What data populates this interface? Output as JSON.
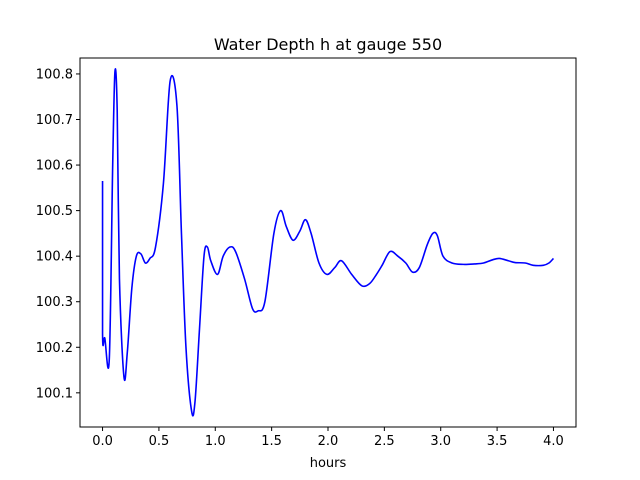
{
  "chart_data": {
    "type": "line",
    "title": "Water Depth h at gauge 550",
    "xlabel": "hours",
    "ylabel": "",
    "xlim": [
      -0.2,
      4.2
    ],
    "ylim": [
      100.025,
      100.835
    ],
    "xticks": [
      0.0,
      0.5,
      1.0,
      1.5,
      2.0,
      2.5,
      3.0,
      3.5,
      4.0
    ],
    "xtick_labels": [
      "0.0",
      "0.5",
      "1.0",
      "1.5",
      "2.0",
      "2.5",
      "3.0",
      "3.5",
      "4.0"
    ],
    "yticks": [
      100.1,
      100.2,
      100.3,
      100.4,
      100.5,
      100.6,
      100.7,
      100.8
    ],
    "ytick_labels": [
      "100.1",
      "100.2",
      "100.3",
      "100.4",
      "100.5",
      "100.6",
      "100.7",
      "100.8"
    ],
    "grid": false,
    "series": [
      {
        "color": "#0000ff",
        "x": [
          0.0,
          0.0,
          0.02,
          0.06,
          0.09,
          0.11,
          0.13,
          0.15,
          0.19,
          0.22,
          0.26,
          0.3,
          0.34,
          0.38,
          0.42,
          0.47,
          0.54,
          0.6,
          0.66,
          0.7,
          0.74,
          0.79,
          0.82,
          0.86,
          0.9,
          0.93,
          0.96,
          1.02,
          1.07,
          1.13,
          1.18,
          1.26,
          1.33,
          1.38,
          1.44,
          1.52,
          1.58,
          1.63,
          1.69,
          1.75,
          1.8,
          1.85,
          1.92,
          1.99,
          2.06,
          2.12,
          2.21,
          2.3,
          2.37,
          2.43,
          2.48,
          2.55,
          2.62,
          2.69,
          2.75,
          2.81,
          2.88,
          2.93,
          2.97,
          3.02,
          3.1,
          3.2,
          3.3,
          3.38,
          3.46,
          3.52,
          3.6,
          3.66,
          3.75,
          3.82,
          3.91,
          3.96,
          4.0
        ],
        "y": [
          100.565,
          100.23,
          100.22,
          100.175,
          100.6,
          100.805,
          100.72,
          100.35,
          100.135,
          100.19,
          100.33,
          100.4,
          100.405,
          100.385,
          100.395,
          100.42,
          100.56,
          100.785,
          100.73,
          100.45,
          100.2,
          100.06,
          100.08,
          100.24,
          100.4,
          100.42,
          100.39,
          100.36,
          100.4,
          100.42,
          100.41,
          100.35,
          100.285,
          100.28,
          100.3,
          100.45,
          100.5,
          100.465,
          100.435,
          100.455,
          100.48,
          100.45,
          100.385,
          100.36,
          100.375,
          100.39,
          100.36,
          100.335,
          100.34,
          100.36,
          100.38,
          100.41,
          100.4,
          100.385,
          100.365,
          100.375,
          100.425,
          100.45,
          100.445,
          100.4,
          100.385,
          100.382,
          100.383,
          100.385,
          100.392,
          100.395,
          100.39,
          100.386,
          100.385,
          100.38,
          100.38,
          100.385,
          100.395
        ]
      }
    ]
  }
}
